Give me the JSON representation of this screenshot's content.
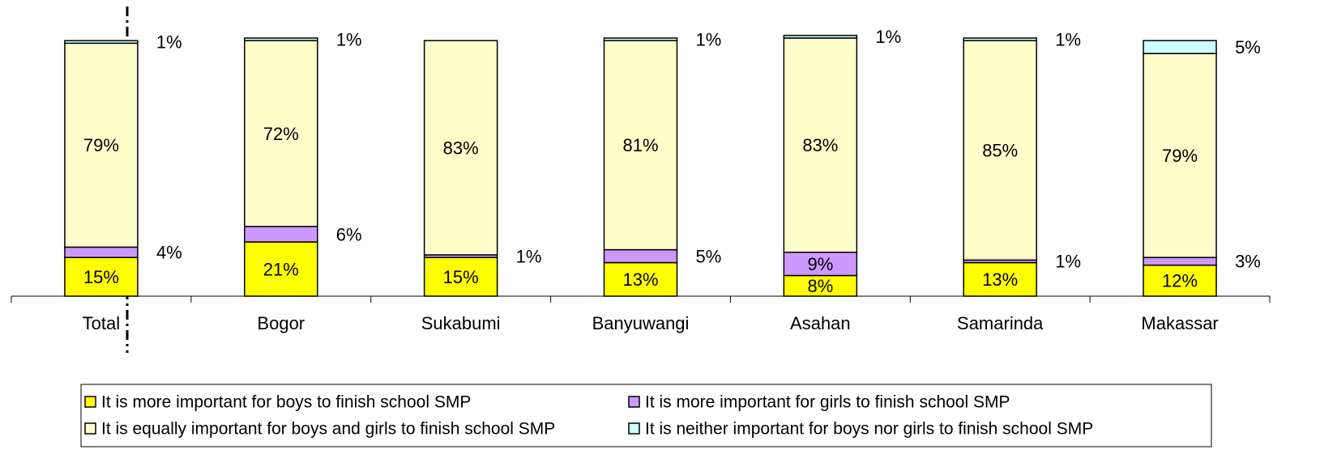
{
  "chart_data": {
    "type": "stacked_bar",
    "categories": [
      "Total",
      "Bogor",
      "Sukabumi",
      "Banyuwangi",
      "Asahan",
      "Samarinda",
      "Makassar"
    ],
    "ylim": [
      0,
      100
    ],
    "series": [
      {
        "name": "It is more important for boys to finish school SMP",
        "color": "#ffff00",
        "values": [
          15,
          21,
          15,
          13,
          8,
          13,
          12
        ],
        "value_labels": [
          "15%",
          "21%",
          "15%",
          "13%",
          "8%",
          "13%",
          "12%"
        ]
      },
      {
        "name": "It is more important for girls to finish school SMP",
        "color": "#cc99ff",
        "values": [
          4,
          6,
          1,
          5,
          9,
          1,
          3
        ],
        "value_labels": [
          "4%",
          "6%",
          "1%",
          "5%",
          "9%",
          "1%",
          "3%"
        ]
      },
      {
        "name": "It is equally important for boys and girls to finish school SMP",
        "color": "#ffffcc",
        "values": [
          79,
          72,
          83,
          81,
          83,
          85,
          79
        ],
        "value_labels": [
          "79%",
          "72%",
          "83%",
          "81%",
          "83%",
          "85%",
          "79%"
        ]
      },
      {
        "name": "It is neither important for boys nor girls to finish school SMP",
        "color": "#ccffff",
        "values": [
          1,
          1,
          null,
          1,
          1,
          1,
          5
        ],
        "value_labels": [
          "1%",
          "1%",
          null,
          "1%",
          "1%",
          "1%",
          "5%"
        ]
      }
    ]
  }
}
